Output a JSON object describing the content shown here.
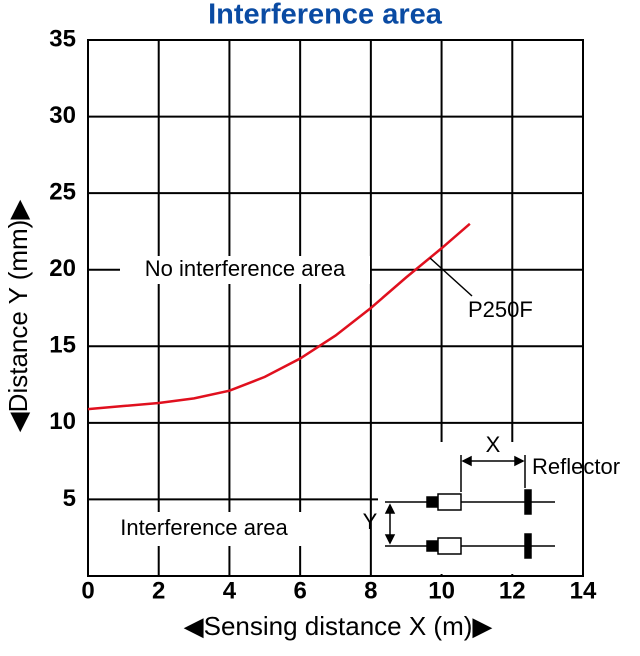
{
  "chart_data": {
    "type": "line",
    "title": "Interference area",
    "x_label": "◀Sensing distance X (m)▶",
    "y_label": "◀Distance Y (mm)▶",
    "x": [
      0,
      1,
      2,
      3,
      4,
      5,
      6,
      7,
      8,
      9,
      10,
      10.8
    ],
    "series": [
      {
        "name": "P250F",
        "color": "#e0101e",
        "values": [
          10.9,
          11.1,
          11.3,
          11.6,
          12.1,
          13,
          14.2,
          15.7,
          17.5,
          19.5,
          21.4,
          23
        ]
      }
    ],
    "xlim": [
      0,
      14
    ],
    "xticks": [
      0,
      2,
      4,
      6,
      8,
      10,
      12,
      14
    ],
    "ylim": [
      0,
      35
    ],
    "yticks": [
      5,
      10,
      15,
      20,
      25,
      30,
      35
    ],
    "grid": true,
    "annotations": {
      "no_interference": "No interference area",
      "interference": "Interference area",
      "x_mark": "X",
      "y_mark": "Y",
      "reflector": "Reflector"
    }
  }
}
